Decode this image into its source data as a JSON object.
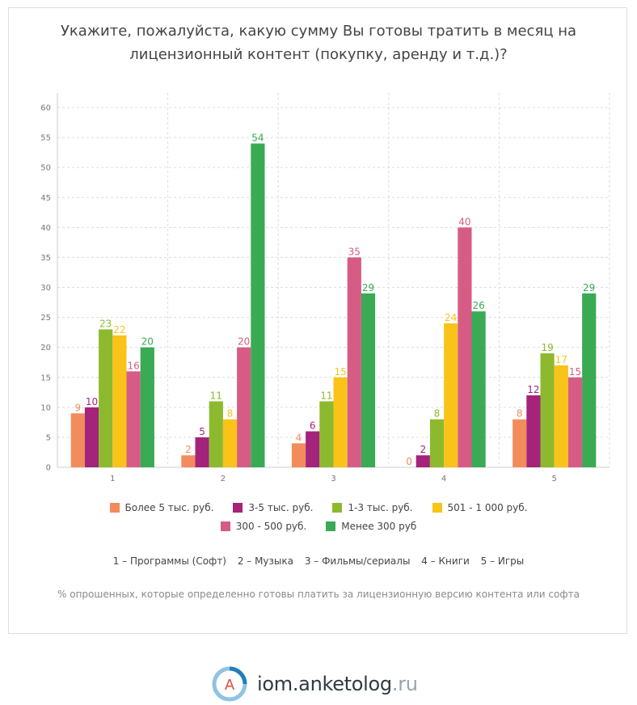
{
  "title_lines": [
    "Укажите, пожалуйста, какую сумму Вы готовы тратить в месяц на",
    "лицензионный контент (покупку, аренду и т.д.)?"
  ],
  "chart_data": {
    "type": "bar",
    "categories": [
      "1",
      "2",
      "3",
      "4",
      "5"
    ],
    "ylim": [
      0,
      60
    ],
    "yticks": [
      0,
      5,
      10,
      15,
      20,
      25,
      30,
      35,
      40,
      45,
      50,
      55,
      60
    ],
    "grid": true,
    "legend_placement": "bottom",
    "series": [
      {
        "name": "Более 5 тыс. руб.",
        "color": "#f28c5c",
        "values": [
          9,
          2,
          4,
          0,
          8
        ]
      },
      {
        "name": "3-5 тыс. руб.",
        "color": "#a3247a",
        "values": [
          10,
          5,
          6,
          2,
          12
        ]
      },
      {
        "name": "1-3 тыс. руб.",
        "color": "#8db92e",
        "values": [
          23,
          11,
          11,
          8,
          19
        ]
      },
      {
        "name": "501 - 1 000 руб.",
        "color": "#fac31a",
        "values": [
          22,
          8,
          15,
          24,
          17
        ]
      },
      {
        "name": "300 - 500 руб.",
        "color": "#d65c86",
        "values": [
          16,
          20,
          35,
          40,
          15
        ]
      },
      {
        "name": "Менее 300 руб",
        "color": "#3aaa55",
        "values": [
          20,
          54,
          29,
          26,
          29
        ]
      }
    ]
  },
  "category_key": [
    "1 – Программы (Софт)",
    "2 – Музыка",
    "3 – Фильмы/сериалы",
    "4 – Книги",
    "5 – Игры"
  ],
  "note": "% опрошенных, которые определенно готовы платить за лицензионную версию контента или софта",
  "brand": {
    "logo_letter": "A",
    "name": "iom.anketolog",
    "tld": ".ru",
    "logo_colors": [
      "#1f7fb8",
      "#8ec3e3",
      "#e8473f"
    ]
  }
}
